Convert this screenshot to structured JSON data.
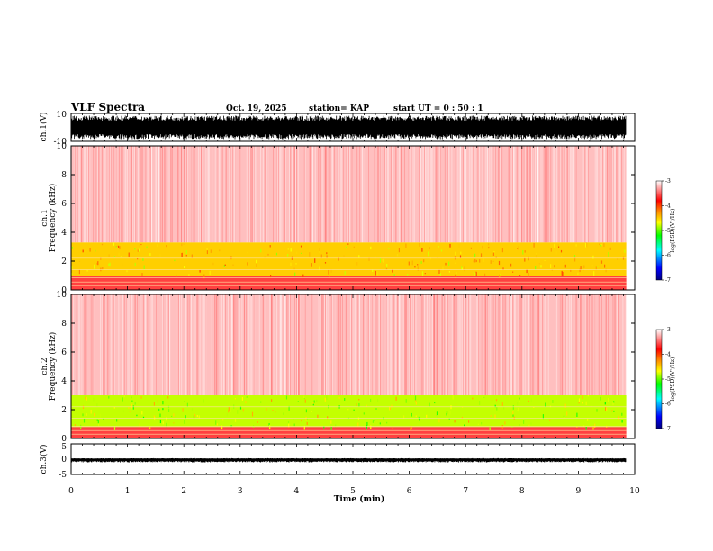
{
  "header": {
    "title": "VLF Spectra",
    "date": "Oct. 19, 2025",
    "station": "station= KAP",
    "start": "start  UT =   0 : 50 : 1"
  },
  "colorbar": {
    "label": "log(PSD)(V²/Hz)",
    "ticks": [
      "-3",
      "-4",
      "-5",
      "-6",
      "-7"
    ],
    "stops": [
      "#000080",
      "#0000ff",
      "#00ffff",
      "#00ff00",
      "#ffff00",
      "#ff8000",
      "#ff0000",
      "#ffffff"
    ]
  },
  "chart_data": [
    {
      "type": "line",
      "name": "ch1-waveform",
      "ylabel": "ch.1(V)",
      "ylim": [
        -10,
        10
      ],
      "yticks": [
        "10",
        "-10"
      ],
      "xlim": [
        0,
        10
      ],
      "description_values": {
        "typical_max": 8,
        "typical_min": -8
      }
    },
    {
      "type": "heatmap",
      "name": "ch1-spectrogram",
      "ylabel": "ch.1 Frequency (kHz)",
      "ylim": [
        0,
        10
      ],
      "yticks": [
        "0",
        "2",
        "4",
        "6",
        "8",
        "10"
      ],
      "xlim": [
        0,
        10
      ],
      "bands": [
        {
          "from_khz": 0,
          "to_khz": 1.0,
          "level": -3.6
        },
        {
          "from_khz": 1.0,
          "to_khz": 3.3,
          "level": -4.5
        },
        {
          "from_khz": 3.3,
          "to_khz": 10,
          "level": -3.2
        }
      ],
      "data_end_min": 9.85
    },
    {
      "type": "heatmap",
      "name": "ch2-spectrogram",
      "ylabel": "ch.2 Frequency (kHz)",
      "ylim": [
        0,
        10
      ],
      "yticks": [
        "0",
        "2",
        "4",
        "6",
        "8",
        "10"
      ],
      "xlim": [
        0,
        10
      ],
      "bands": [
        {
          "from_khz": 0,
          "to_khz": 0.8,
          "level": -3.6
        },
        {
          "from_khz": 0.8,
          "to_khz": 3.0,
          "level": -4.8
        },
        {
          "from_khz": 3.0,
          "to_khz": 10,
          "level": -3.2
        }
      ],
      "data_end_min": 9.85
    },
    {
      "type": "line",
      "name": "ch3-waveform",
      "ylabel": "ch.3(V)",
      "ylim": [
        -5,
        5
      ],
      "yticks": [
        "5",
        "0",
        "-5"
      ],
      "xlim": [
        0,
        10
      ],
      "description_values": {
        "typical_max": 0.3,
        "typical_min": -1.0
      }
    }
  ],
  "xaxis": {
    "label": "Time (min)",
    "ticks": [
      "0",
      "1",
      "2",
      "3",
      "4",
      "5",
      "6",
      "7",
      "8",
      "9",
      "10"
    ]
  }
}
